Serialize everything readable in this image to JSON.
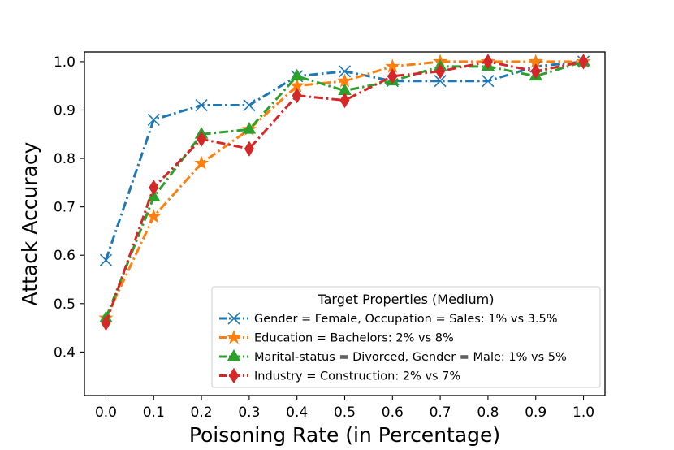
{
  "chart_data": {
    "type": "line",
    "xlabel": "Poisoning Rate (in Percentage)",
    "ylabel": "Attack Accuracy",
    "x": [
      0.0,
      0.1,
      0.2,
      0.3,
      0.4,
      0.5,
      0.6,
      0.7,
      0.8,
      0.9,
      1.0
    ],
    "xticks": [
      "0.0",
      "0.1",
      "0.2",
      "0.3",
      "0.4",
      "0.5",
      "0.6",
      "0.7",
      "0.8",
      "0.9",
      "1.0"
    ],
    "yticks": [
      "0.4",
      "0.5",
      "0.6",
      "0.7",
      "0.8",
      "0.9",
      "1.0"
    ],
    "xlim": [
      -0.045,
      1.045
    ],
    "ylim": [
      0.31,
      1.02
    ],
    "grid": false,
    "legend": {
      "title": "Target Properties (Medium)",
      "placement": "lower-right"
    },
    "series": [
      {
        "name": "Gender = Female, Occupation = Sales: 1% vs 3.5%",
        "color": "#1f77b4",
        "marker": "x",
        "values": [
          0.59,
          0.88,
          0.91,
          0.91,
          0.97,
          0.98,
          0.96,
          0.96,
          0.96,
          0.99,
          1.0
        ]
      },
      {
        "name": "Education = Bachelors: 2% vs 8%",
        "color": "#ff7f0e",
        "marker": "star",
        "values": [
          0.47,
          0.68,
          0.79,
          0.86,
          0.95,
          0.96,
          0.99,
          1.0,
          1.0,
          1.0,
          1.0
        ]
      },
      {
        "name": "Marital-status = Divorced, Gender = Male: 1% vs 5%",
        "color": "#2ca02c",
        "marker": "triangle",
        "values": [
          0.47,
          0.72,
          0.85,
          0.86,
          0.97,
          0.94,
          0.96,
          0.99,
          0.99,
          0.97,
          1.0
        ]
      },
      {
        "name": "Industry = Construction: 2% vs 7%",
        "color": "#d62728",
        "marker": "diamond",
        "values": [
          0.46,
          0.74,
          0.84,
          0.82,
          0.93,
          0.92,
          0.97,
          0.98,
          1.0,
          0.98,
          1.0
        ]
      }
    ]
  }
}
